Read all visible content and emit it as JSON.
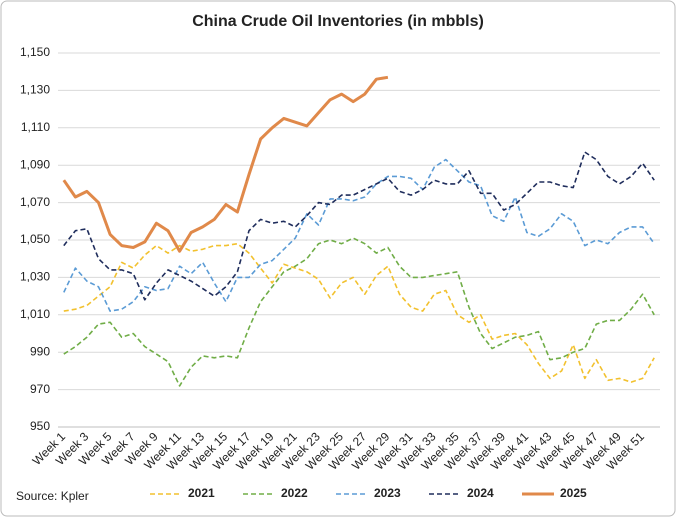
{
  "chart_data": {
    "type": "line",
    "title": "China Crude Oil Inventories (in mbbls)",
    "source": "Source: Kpler",
    "categories": [
      "Week 1",
      null,
      "Week 3",
      null,
      "Week 5",
      null,
      "Week 7",
      null,
      "Week 9",
      null,
      "Week 11",
      null,
      "Week 13",
      null,
      "Week 15",
      null,
      "Week 17",
      null,
      "Week 19",
      null,
      "Week 21",
      null,
      "Week 23",
      null,
      "Week 25",
      null,
      "Week 27",
      null,
      "Week 29",
      null,
      "Week 31",
      null,
      "Week 33",
      null,
      "Week 35",
      null,
      "Week 37",
      null,
      "Week 39",
      null,
      "Week 41",
      null,
      "Week 43",
      null,
      "Week 45",
      null,
      "Week 47",
      null,
      "Week 49",
      null,
      "Week 51",
      null
    ],
    "ylim": [
      950,
      1150
    ],
    "yticks": [
      950,
      970,
      990,
      {
        "value": 1010,
        "label": "1,010"
      },
      {
        "value": 1030,
        "label": "1,030"
      },
      {
        "value": 1050,
        "label": "1,050"
      },
      {
        "value": 1070,
        "label": "1,070"
      },
      {
        "value": 1090,
        "label": "1,090"
      },
      {
        "value": 1110,
        "label": "1,110"
      },
      {
        "value": 1130,
        "label": "1,130"
      },
      {
        "value": 1150,
        "label": "1,150"
      }
    ],
    "grid": true,
    "legend": "bottom",
    "series": [
      {
        "name": "2021",
        "color": "#f2c12e",
        "dashed": true,
        "values": [
          1012,
          1013,
          1015,
          1020,
          1025,
          1038,
          1035,
          1042,
          1047,
          1043,
          1047,
          1044,
          1045,
          1047,
          1047,
          1048,
          1043,
          1035,
          1027,
          1037,
          1035,
          1033,
          1029,
          1019,
          1027,
          1030,
          1021,
          1031,
          1036,
          1021,
          1014,
          1012,
          1021,
          1023,
          1010,
          1006,
          1010,
          997,
          999,
          1000,
          994,
          984,
          976,
          980,
          994,
          976,
          986,
          975,
          976,
          974,
          976,
          987
        ]
      },
      {
        "name": "2022",
        "color": "#70ad47",
        "dashed": true,
        "values": [
          989,
          993,
          998,
          1005,
          1006,
          998,
          1000,
          993,
          989,
          985,
          972,
          982,
          988,
          987,
          988,
          987,
          1003,
          1017,
          1025,
          1033,
          1036,
          1040,
          1048,
          1050,
          1048,
          1051,
          1048,
          1043,
          1046,
          1036,
          1030,
          1030,
          1031,
          1032,
          1033,
          1014,
          1000,
          992,
          995,
          998,
          999,
          1001,
          986,
          987,
          990,
          992,
          1005,
          1007,
          1007,
          1013,
          1021,
          1010
        ]
      },
      {
        "name": "2023",
        "color": "#5b9bd5",
        "dashed": true,
        "values": [
          1022,
          1035,
          1028,
          1025,
          1012,
          1013,
          1017,
          1025,
          1023,
          1024,
          1036,
          1032,
          1038,
          1027,
          1017,
          1030,
          1030,
          1037,
          1039,
          1045,
          1051,
          1064,
          1058,
          1072,
          1072,
          1071,
          1073,
          1080,
          1084,
          1084,
          1083,
          1077,
          1089,
          1093,
          1087,
          1081,
          1079,
          1063,
          1060,
          1073,
          1054,
          1052,
          1056,
          1064,
          1060,
          1047,
          1050,
          1048,
          1054,
          1057,
          1057,
          1048
        ]
      },
      {
        "name": "2024",
        "color": "#1f2d5c",
        "dashed": true,
        "values": [
          1047,
          1055,
          1056,
          1040,
          1034,
          1034,
          1032,
          1018,
          1027,
          1034,
          1031,
          1028,
          1024,
          1020,
          1025,
          1033,
          1055,
          1061,
          1059,
          1060,
          1057,
          1063,
          1070,
          1069,
          1074,
          1074,
          1077,
          1080,
          1083,
          1076,
          1074,
          1077,
          1082,
          1080,
          1080,
          1087,
          1075,
          1075,
          1066,
          1069,
          1075,
          1081,
          1081,
          1079,
          1078,
          1097,
          1093,
          1084,
          1080,
          1084,
          1091,
          1082
        ]
      },
      {
        "name": "2025",
        "color": "#e0894a",
        "dashed": false,
        "values": [
          1082,
          1073,
          1076,
          1070,
          1053,
          1047,
          1046,
          1049,
          1059,
          1055,
          1044,
          1054,
          1057,
          1061,
          1069,
          1065,
          1085,
          1104,
          1110,
          1115,
          1113,
          1111,
          1118,
          1125,
          1128,
          1124,
          1128,
          1136,
          1137,
          null,
          null,
          null,
          null,
          null,
          null,
          null,
          null,
          null,
          null,
          null,
          null,
          null,
          null,
          null,
          null,
          null,
          null,
          null,
          null,
          null,
          null,
          null
        ]
      }
    ]
  }
}
